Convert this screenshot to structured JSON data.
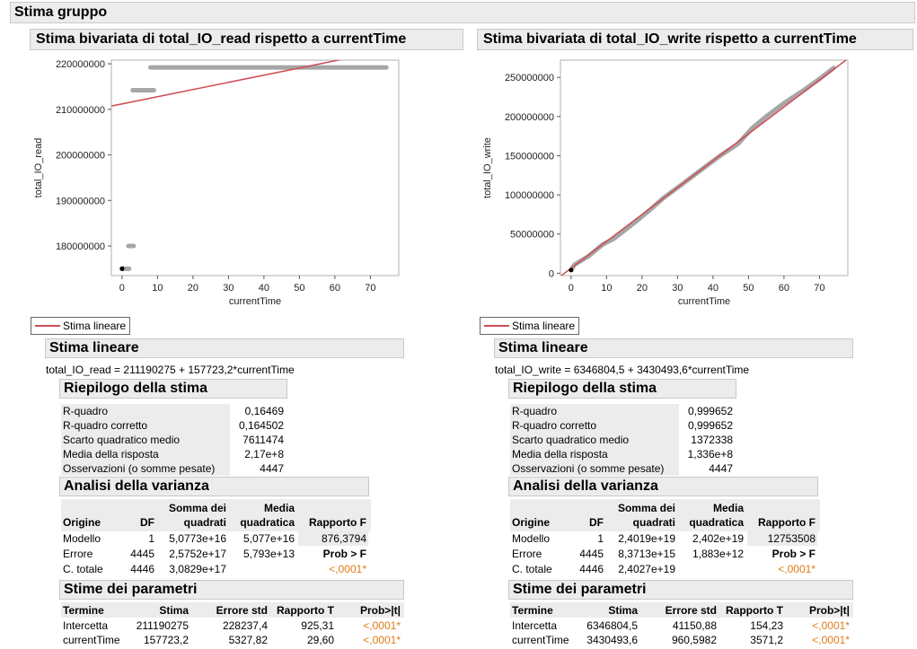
{
  "report": {
    "title": "Stima gruppo"
  },
  "colors": {
    "fit_line": "#d04c56",
    "points": "#a6a6a6",
    "orange": "#e07b18"
  },
  "panels": [
    {
      "id": "read",
      "title": "Stima bivariata di total_IO_read rispetto a currentTime",
      "legend": "Stima lineare",
      "fit_header": "Stima lineare",
      "equation": "total_IO_read = 211190275 + 157723,2*currentTime",
      "summary": {
        "title": "Riepilogo della stima",
        "rows": [
          {
            "label": "R-quadro",
            "value": "0,16469"
          },
          {
            "label": "R-quadro corretto",
            "value": "0,164502"
          },
          {
            "label": "Scarto quadratico medio",
            "value": "7611474"
          },
          {
            "label": "Media della risposta",
            "value": "2,17e+8"
          },
          {
            "label": "Osservazioni (o somme pesate)",
            "value": "4447"
          }
        ]
      },
      "anova": {
        "title": "Analisi della varianza",
        "headers": {
          "origine": "Origine",
          "df": "DF",
          "ss1": "Somma dei",
          "ss2": "quadrati",
          "ms1": "Media",
          "ms2": "quadratica",
          "f": "Rapporto F"
        },
        "rows": [
          {
            "origine": "Modello",
            "df": "1",
            "ss": "5,0773e+16",
            "ms": "5,077e+16",
            "f": "876,3794"
          },
          {
            "origine": "Errore",
            "df": "4445",
            "ss": "2,5752e+17",
            "ms": "5,793e+13",
            "f": "Prob > F"
          },
          {
            "origine": "C. totale",
            "df": "4446",
            "ss": "3,0829e+17",
            "ms": "",
            "f": "<,0001*"
          }
        ]
      },
      "params": {
        "title": "Stime dei parametri",
        "headers": {
          "termine": "Termine",
          "stima": "Stima",
          "err": "Errore std",
          "t": "Rapporto T",
          "p": "Prob>|t|"
        },
        "rows": [
          {
            "termine": "Intercetta",
            "stima": "211190275",
            "err": "228237,4",
            "t": "925,31",
            "p": "<,0001*"
          },
          {
            "termine": "currentTime",
            "stima": "157723,2",
            "err": "5327,82",
            "t": "29,60",
            "p": "<,0001*"
          }
        ]
      }
    },
    {
      "id": "write",
      "title": "Stima bivariata di total_IO_write rispetto a currentTime",
      "legend": "Stima lineare",
      "fit_header": "Stima lineare",
      "equation": "total_IO_write = 6346804,5 + 3430493,6*currentTime",
      "summary": {
        "title": "Riepilogo della stima",
        "rows": [
          {
            "label": "R-quadro",
            "value": "0,999652"
          },
          {
            "label": "R-quadro corretto",
            "value": "0,999652"
          },
          {
            "label": "Scarto quadratico medio",
            "value": "1372338"
          },
          {
            "label": "Media della risposta",
            "value": "1,336e+8"
          },
          {
            "label": "Osservazioni (o somme pesate)",
            "value": "4447"
          }
        ]
      },
      "anova": {
        "title": "Analisi della varianza",
        "headers": {
          "origine": "Origine",
          "df": "DF",
          "ss1": "Somma dei",
          "ss2": "quadrati",
          "ms1": "Media",
          "ms2": "quadratica",
          "f": "Rapporto F"
        },
        "rows": [
          {
            "origine": "Modello",
            "df": "1",
            "ss": "2,4019e+19",
            "ms": "2,402e+19",
            "f": "12753508"
          },
          {
            "origine": "Errore",
            "df": "4445",
            "ss": "8,3713e+15",
            "ms": "1,883e+12",
            "f": "Prob > F"
          },
          {
            "origine": "C. totale",
            "df": "4446",
            "ss": "2,4027e+19",
            "ms": "",
            "f": "<,0001*"
          }
        ]
      },
      "params": {
        "title": "Stime dei parametri",
        "headers": {
          "termine": "Termine",
          "stima": "Stima",
          "err": "Errore std",
          "t": "Rapporto T",
          "p": "Prob>|t|"
        },
        "rows": [
          {
            "termine": "Intercetta",
            "stima": "6346804,5",
            "err": "41150,88",
            "t": "154,23",
            "p": "<,0001*"
          },
          {
            "termine": "currentTime",
            "stima": "3430493,6",
            "err": "960,5982",
            "t": "3571,2",
            "p": "<,0001*"
          }
        ]
      }
    }
  ],
  "chart_data": [
    {
      "type": "scatter",
      "title": "Stima bivariata di total_IO_read rispetto a currentTime",
      "xlabel": "currentTime",
      "ylabel": "total_IO_read",
      "xlim": [
        -3,
        78
      ],
      "ylim": [
        173500000,
        220800000
      ],
      "xticks": [
        "0",
        "10",
        "20",
        "30",
        "40",
        "50",
        "60",
        "70"
      ],
      "xtick_values": [
        0,
        10,
        20,
        30,
        40,
        50,
        60,
        70
      ],
      "yticks": [
        "180000000",
        "190000000",
        "200000000",
        "210000000",
        "220000000"
      ],
      "ytick_values": [
        180000000,
        190000000,
        200000000,
        210000000,
        220000000
      ],
      "grid": false,
      "segments": [
        {
          "x0": 0,
          "x1": 0.3,
          "y": 175000000,
          "color": "#000000"
        },
        {
          "x0": 1,
          "x1": 2,
          "y": 175000000,
          "color": "#a6a6a6"
        },
        {
          "x0": 1.8,
          "x1": 3.3,
          "y": 180000000,
          "color": "#a6a6a6"
        },
        {
          "x0": 3,
          "x1": 9,
          "y": 214200000,
          "color": "#a6a6a6"
        },
        {
          "x0": 8,
          "x1": 74.5,
          "y": 219200000,
          "color": "#a6a6a6"
        }
      ],
      "fit": {
        "intercept": 211190275,
        "slope": 157723.2,
        "name": "Stima lineare"
      }
    },
    {
      "type": "scatter",
      "title": "Stima bivariata di total_IO_write rispetto a currentTime",
      "xlabel": "currentTime",
      "ylabel": "total_IO_write",
      "xlim": [
        -3,
        78
      ],
      "ylim": [
        -3000000,
        272000000
      ],
      "xticks": [
        "0",
        "10",
        "20",
        "30",
        "40",
        "50",
        "60",
        "70"
      ],
      "xtick_values": [
        0,
        10,
        20,
        30,
        40,
        50,
        60,
        70
      ],
      "yticks": [
        "0",
        "50000000",
        "100000000",
        "150000000",
        "200000000",
        "250000000"
      ],
      "ytick_values": [
        0,
        50000000,
        100000000,
        150000000,
        200000000,
        250000000
      ],
      "grid": false,
      "points_path": [
        [
          0,
          4000000
        ],
        [
          1,
          11000000
        ],
        [
          5,
          22000000
        ],
        [
          9,
          37000000
        ],
        [
          12,
          44000000
        ],
        [
          18,
          65000000
        ],
        [
          22,
          80000000
        ],
        [
          26,
          96000000
        ],
        [
          32,
          116000000
        ],
        [
          37,
          133000000
        ],
        [
          42,
          150000000
        ],
        [
          47,
          165000000
        ],
        [
          51,
          185000000
        ],
        [
          55,
          200000000
        ],
        [
          60,
          217000000
        ],
        [
          66,
          235000000
        ],
        [
          70,
          248000000
        ],
        [
          74,
          262000000
        ]
      ],
      "start_point": {
        "x": 0,
        "y": 4000000
      },
      "fit": {
        "intercept": 6346804.5,
        "slope": 3430493.6,
        "name": "Stima lineare"
      }
    }
  ]
}
